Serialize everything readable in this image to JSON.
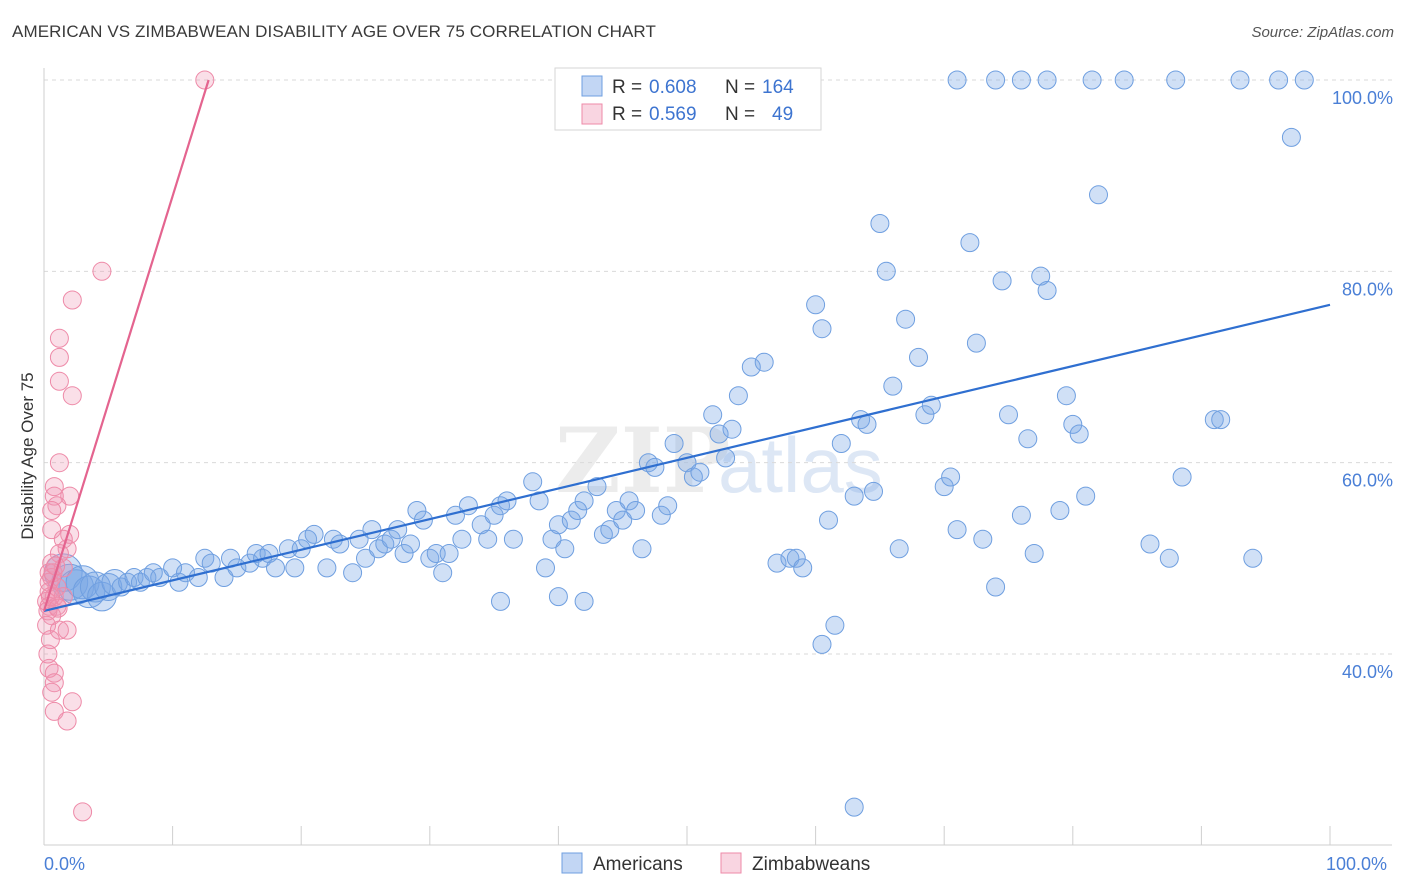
{
  "title": "AMERICAN VS ZIMBABWEAN DISABILITY AGE OVER 75 CORRELATION CHART",
  "source": "Source: ZipAtlas.com",
  "watermark": {
    "zip": "ZIP",
    "atlas": "atlas"
  },
  "colors": {
    "americans": "#6f9fe0",
    "americans_fill": "rgba(120,165,230,0.35)",
    "americans_line": "#2f6fd0",
    "zimbabweans": "#ee8aa8",
    "zimbabweans_fill": "rgba(240,150,180,0.30)",
    "zimbabweans_line": "#e4648f",
    "grid": "#d9d9d9",
    "tick_text": "#4a7fd6"
  },
  "legend": {
    "rows": [
      {
        "r_label": "R =",
        "r_value": "0.608",
        "n_label": "N =",
        "n_value": "164"
      },
      {
        "r_label": "R =",
        "r_value": "0.569",
        "n_label": "N =",
        "n_value": "49"
      }
    ]
  },
  "bottom_legend": [
    "Americans",
    "Zimbabweans"
  ],
  "chart_data": {
    "type": "scatter",
    "title": "AMERICAN VS ZIMBABWEAN DISABILITY AGE OVER 75 CORRELATION CHART",
    "xlabel": "",
    "ylabel": "Disability Age Over 75",
    "xlim": [
      0,
      100
    ],
    "ylim": [
      20,
      102
    ],
    "x_tick_labels": [
      "0.0%",
      "100.0%"
    ],
    "y_ticks": [
      40,
      60,
      80,
      100
    ],
    "y_tick_labels": [
      "40.0%",
      "60.0%",
      "80.0%",
      "100.0%"
    ],
    "grid": true,
    "legend_position": "top-center",
    "series": [
      {
        "name": "Americans",
        "r": 0.608,
        "n": 164,
        "trend": {
          "x0": 0,
          "y0": 44.5,
          "x1": 100,
          "y1": 76.5
        },
        "points": [
          [
            1.5,
            48.5
          ],
          [
            2,
            47.5
          ],
          [
            2.5,
            47
          ],
          [
            3,
            47.5
          ],
          [
            3.5,
            46.5
          ],
          [
            4,
            47
          ],
          [
            4.5,
            46
          ],
          [
            5,
            47
          ],
          [
            5.5,
            47.5
          ],
          [
            6,
            47
          ],
          [
            6.5,
            47.5
          ],
          [
            7,
            48
          ],
          [
            7.5,
            47.5
          ],
          [
            8,
            48
          ],
          [
            8.5,
            48.5
          ],
          [
            9,
            48
          ],
          [
            10,
            49
          ],
          [
            10.5,
            47.5
          ],
          [
            11,
            48.5
          ],
          [
            12,
            48
          ],
          [
            12.5,
            50
          ],
          [
            13,
            49.5
          ],
          [
            14,
            48
          ],
          [
            14.5,
            50
          ],
          [
            15,
            49
          ],
          [
            16,
            49.5
          ],
          [
            16.5,
            50.5
          ],
          [
            17,
            50
          ],
          [
            17.5,
            50.5
          ],
          [
            18,
            49
          ],
          [
            19,
            51
          ],
          [
            19.5,
            49
          ],
          [
            20,
            51
          ],
          [
            20.5,
            52
          ],
          [
            21,
            52.5
          ],
          [
            22,
            49
          ],
          [
            22.5,
            52
          ],
          [
            23,
            51.5
          ],
          [
            24,
            48.5
          ],
          [
            24.5,
            52
          ],
          [
            25,
            50
          ],
          [
            25.5,
            53
          ],
          [
            26,
            51
          ],
          [
            26.5,
            51.5
          ],
          [
            27,
            52
          ],
          [
            27.5,
            53
          ],
          [
            28,
            50.5
          ],
          [
            28.5,
            51.5
          ],
          [
            29,
            55
          ],
          [
            29.5,
            54
          ],
          [
            30,
            50
          ],
          [
            30.5,
            50.5
          ],
          [
            31,
            48.5
          ],
          [
            31.5,
            50.5
          ],
          [
            32,
            54.5
          ],
          [
            32.5,
            52
          ],
          [
            33,
            55.5
          ],
          [
            34,
            53.5
          ],
          [
            34.5,
            52
          ],
          [
            35,
            54.5
          ],
          [
            35.5,
            55.5
          ],
          [
            36,
            56
          ],
          [
            36.5,
            52
          ],
          [
            38,
            58
          ],
          [
            38.5,
            56
          ],
          [
            39,
            49
          ],
          [
            39.5,
            52
          ],
          [
            40,
            53.5
          ],
          [
            40.5,
            51
          ],
          [
            41,
            54
          ],
          [
            41.5,
            55
          ],
          [
            42,
            56
          ],
          [
            43,
            57.5
          ],
          [
            43.5,
            52.5
          ],
          [
            44,
            53
          ],
          [
            44.5,
            55
          ],
          [
            45,
            54
          ],
          [
            45.5,
            56
          ],
          [
            46,
            55
          ],
          [
            46.5,
            51
          ],
          [
            47,
            60
          ],
          [
            47.5,
            59.5
          ],
          [
            48,
            54.5
          ],
          [
            48.5,
            55.5
          ],
          [
            49,
            62
          ],
          [
            50,
            60
          ],
          [
            50.5,
            58.5
          ],
          [
            51,
            59
          ],
          [
            52,
            65
          ],
          [
            52.5,
            63
          ],
          [
            53,
            60.5
          ],
          [
            53.5,
            63.5
          ],
          [
            54,
            67
          ],
          [
            55,
            70
          ],
          [
            56,
            70.5
          ],
          [
            57,
            49.5
          ],
          [
            58,
            50
          ],
          [
            58.5,
            50
          ],
          [
            59,
            49
          ],
          [
            60,
            76.5
          ],
          [
            60.5,
            74
          ],
          [
            61,
            54
          ],
          [
            62,
            62
          ],
          [
            63,
            56.5
          ],
          [
            63.5,
            64.5
          ],
          [
            64,
            64
          ],
          [
            64.5,
            57
          ],
          [
            65,
            85
          ],
          [
            65.5,
            80
          ],
          [
            66,
            68
          ],
          [
            66.5,
            51
          ],
          [
            67,
            75
          ],
          [
            68,
            71
          ],
          [
            68.5,
            65
          ],
          [
            69,
            66
          ],
          [
            70,
            57.5
          ],
          [
            70.5,
            58.5
          ],
          [
            71,
            53
          ],
          [
            72,
            83
          ],
          [
            72.5,
            72.5
          ],
          [
            73,
            52
          ],
          [
            74,
            47
          ],
          [
            74.5,
            79
          ],
          [
            75,
            65
          ],
          [
            76,
            54.5
          ],
          [
            76.5,
            62.5
          ],
          [
            77,
            50.5
          ],
          [
            77.5,
            79.5
          ],
          [
            78,
            78
          ],
          [
            79,
            55
          ],
          [
            79.5,
            67
          ],
          [
            80,
            64
          ],
          [
            80.5,
            63
          ],
          [
            81,
            56.5
          ],
          [
            81.5,
            100
          ],
          [
            82,
            88
          ],
          [
            86,
            51.5
          ],
          [
            87.5,
            50
          ],
          [
            88.5,
            58.5
          ],
          [
            91,
            64.5
          ],
          [
            91.5,
            64.5
          ],
          [
            94,
            50
          ],
          [
            97,
            94
          ],
          [
            98,
            100
          ],
          [
            96,
            100
          ],
          [
            93,
            100
          ],
          [
            71,
            100
          ],
          [
            74,
            100
          ],
          [
            76,
            100
          ],
          [
            78,
            100
          ],
          [
            84,
            100
          ],
          [
            88,
            100
          ],
          [
            61.5,
            43
          ],
          [
            60.5,
            41
          ],
          [
            63,
            24
          ],
          [
            42,
            45.5
          ],
          [
            35.5,
            45.5
          ],
          [
            40,
            46
          ]
        ]
      },
      {
        "name": "Zimbabweans",
        "r": 0.569,
        "n": 49,
        "trend": {
          "x0": 0,
          "y0": 44.5,
          "x1": 12.8,
          "y1": 100
        },
        "points": [
          [
            12.5,
            100
          ],
          [
            4.5,
            80
          ],
          [
            2.2,
            77
          ],
          [
            1.2,
            73
          ],
          [
            1.2,
            71
          ],
          [
            1.2,
            68.5
          ],
          [
            2.2,
            67
          ],
          [
            1.2,
            60
          ],
          [
            2,
            56.5
          ],
          [
            0.8,
            57.5
          ],
          [
            0.8,
            56.5
          ],
          [
            1,
            55.5
          ],
          [
            0.6,
            55
          ],
          [
            0.6,
            53
          ],
          [
            2,
            52.5
          ],
          [
            1.5,
            52
          ],
          [
            1.8,
            51
          ],
          [
            1.2,
            50.5
          ],
          [
            0.6,
            49.5
          ],
          [
            1.5,
            49
          ],
          [
            0.4,
            48.5
          ],
          [
            0.6,
            48
          ],
          [
            0.4,
            47.5
          ],
          [
            1,
            47
          ],
          [
            0.4,
            46.5
          ],
          [
            0.8,
            46
          ],
          [
            1.5,
            46
          ],
          [
            0.2,
            45.5
          ],
          [
            0.4,
            45
          ],
          [
            1,
            45
          ],
          [
            0.3,
            44.5
          ],
          [
            0.6,
            44
          ],
          [
            0.2,
            43
          ],
          [
            1.2,
            42.5
          ],
          [
            1.8,
            42.5
          ],
          [
            0.5,
            41.5
          ],
          [
            0.4,
            38.5
          ],
          [
            0.8,
            38
          ],
          [
            0.8,
            37
          ],
          [
            0.6,
            36
          ],
          [
            0.8,
            34
          ],
          [
            1.8,
            33
          ],
          [
            2.2,
            35
          ],
          [
            3,
            23.5
          ],
          [
            0.3,
            40
          ],
          [
            0.5,
            46
          ],
          [
            0.7,
            48.5
          ],
          [
            0.9,
            49.2
          ],
          [
            1.1,
            44.8
          ]
        ]
      }
    ]
  }
}
